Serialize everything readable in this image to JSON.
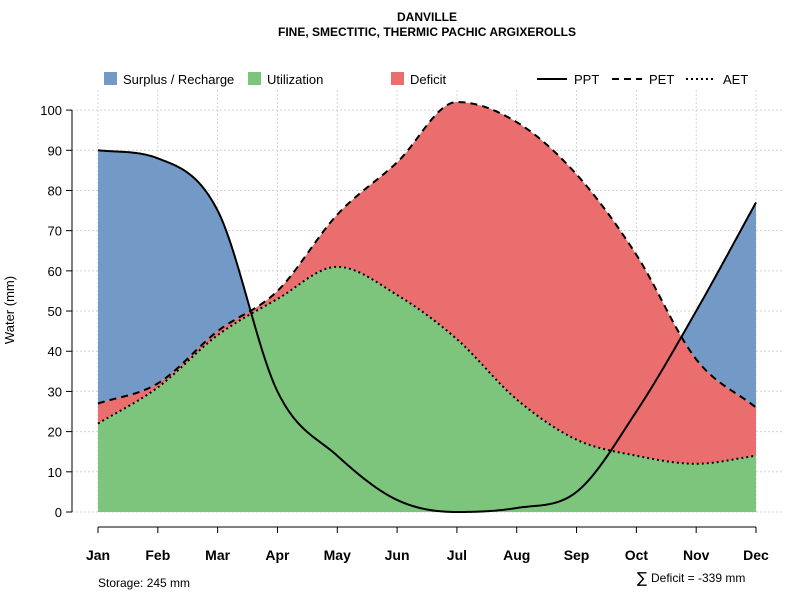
{
  "chart_data": {
    "type": "area",
    "title": "DANVILLE",
    "subtitle": "FINE, SMECTITIC, THERMIC PACHIC ARGIXEROLLS",
    "xlabel": "",
    "ylabel": "Water (mm)",
    "ylim": [
      0,
      105
    ],
    "yticks": [
      0,
      10,
      20,
      30,
      40,
      50,
      60,
      70,
      80,
      90,
      100
    ],
    "grid": true,
    "categories": [
      "Jan",
      "Feb",
      "Mar",
      "Apr",
      "May",
      "Jun",
      "Jul",
      "Aug",
      "Sep",
      "Oct",
      "Nov",
      "Dec"
    ],
    "series": [
      {
        "name": "PPT",
        "style": "solid",
        "values": [
          90,
          88,
          75,
          30,
          14,
          3,
          0,
          1,
          5,
          25,
          50,
          77
        ]
      },
      {
        "name": "PET",
        "style": "dashed",
        "values": [
          27,
          32,
          45,
          55,
          74,
          87,
          102,
          97,
          84,
          64,
          38,
          26
        ]
      },
      {
        "name": "AET",
        "style": "dotted",
        "values": [
          22,
          31,
          44,
          53,
          61,
          54,
          43,
          28,
          18,
          14,
          12,
          14
        ]
      }
    ],
    "legend": {
      "fills": [
        {
          "name": "Surplus / Recharge",
          "color": "#7399c6"
        },
        {
          "name": "Utilization",
          "color": "#7dc57d"
        },
        {
          "name": "Deficit",
          "color": "#eb6e6e"
        }
      ],
      "lines": [
        {
          "name": "PPT",
          "style": "solid"
        },
        {
          "name": "PET",
          "style": "dashed"
        },
        {
          "name": "AET",
          "style": "dotted"
        }
      ],
      "position": "top"
    },
    "annotations": {
      "storage": "Storage: 245 mm",
      "deficit_symbol": "∑",
      "deficit": "Deficit = -339 mm"
    }
  },
  "colors": {
    "surplus": "#7399c6",
    "utilization": "#7dc57d",
    "deficit": "#eb6e6e",
    "grid": "#d3d3d3",
    "line": "#000000"
  }
}
